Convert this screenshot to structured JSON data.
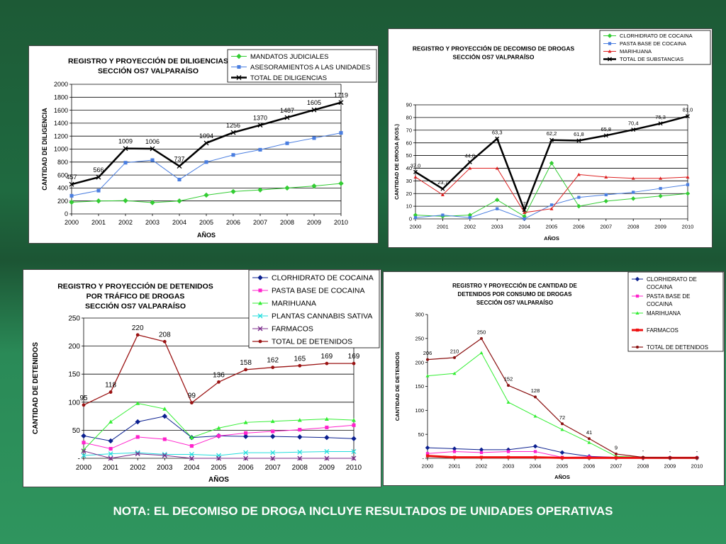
{
  "note": "NOTA: EL DECOMISO DE DROGA INCLUYE RESULTADOS DE UNIDADES OPERATIVAS",
  "chart_data": [
    {
      "id": "diligencias",
      "type": "line",
      "title": [
        "REGISTRO Y PROYECCIÓN DE DILIGENCIAS",
        "SECCIÓN OS7 VALPARAÍSO"
      ],
      "xlabel": "AÑOS",
      "ylabel": "CANTIDAD DE DILIGENCIA",
      "ylim": [
        0,
        2000
      ],
      "yticks": [
        "0",
        "200",
        "400",
        "600",
        "800",
        "1000",
        "1200",
        "1400",
        "1600",
        "1800",
        "2000"
      ],
      "grid": true,
      "legend": "top-right",
      "categories": [
        "2000",
        "2001",
        "2002",
        "2003",
        "2004",
        "2005",
        "2006",
        "2007",
        "2008",
        "2009",
        "2010"
      ],
      "series": [
        {
          "name": "MANDATOS JUDICIALES",
          "color": "#33cc33",
          "marker": "diamond",
          "width": 1,
          "values": [
            180,
            200,
            205,
            175,
            200,
            290,
            345,
            370,
            400,
            430,
            470
          ],
          "labels": []
        },
        {
          "name": "ASESORAMIENTOS A LAS UNIDADES",
          "color": "#4a7ee0",
          "marker": "square",
          "width": 1,
          "values": [
            280,
            360,
            790,
            830,
            530,
            800,
            910,
            990,
            1090,
            1170,
            1250
          ],
          "labels": []
        },
        {
          "name": "TOTAL DE DILIGENCIAS",
          "color": "#000000",
          "marker": "x",
          "width": 2.5,
          "values": [
            457,
            566,
            1009,
            1006,
            737,
            1094,
            1256,
            1370,
            1487,
            1605,
            1719
          ],
          "labels": [
            "457",
            "566",
            "1009",
            "1006",
            "737",
            "1094",
            "1256",
            "1370",
            "1487",
            "1605",
            "1719"
          ]
        }
      ]
    },
    {
      "id": "decomiso",
      "type": "line",
      "title": [
        "REGISTRO Y PROYECCIÓN DE DECOMISO DE DROGAS",
        "SECCIÓN OS7 VALPARAÍSO"
      ],
      "xlabel": "AÑOS",
      "ylabel": "CANTIDAD DE DROGA (KGS.)",
      "ylim": [
        0,
        90
      ],
      "yticks": [
        "0",
        "10",
        "20",
        "30",
        "40",
        "50",
        "60",
        "70",
        "80",
        "90"
      ],
      "grid": true,
      "legend": "top-right",
      "categories": [
        "2000",
        "2001",
        "2002",
        "2003",
        "2004",
        "2005",
        "2006",
        "2007",
        "2008",
        "2009",
        "2010"
      ],
      "series": [
        {
          "name": "CLORHIDRATO DE COCAINA",
          "color": "#33cc33",
          "marker": "diamond",
          "width": 1,
          "values": [
            3,
            2,
            3,
            15,
            2,
            44,
            10,
            14,
            16,
            18,
            20
          ],
          "labels": []
        },
        {
          "name": "PASTA BASE DE COCAINA",
          "color": "#4a7ee0",
          "marker": "square",
          "width": 1,
          "values": [
            1,
            3,
            1,
            8,
            0,
            11,
            17,
            19,
            21,
            24,
            27
          ],
          "labels": []
        },
        {
          "name": "MARIHUANA",
          "color": "#dd2222",
          "marker": "triangle",
          "width": 1,
          "values": [
            33,
            19,
            40,
            40,
            5,
            8,
            35,
            33,
            32,
            32,
            33
          ],
          "labels": []
        },
        {
          "name": "TOTAL DE SUBSTANCIAS",
          "color": "#000000",
          "marker": "x",
          "width": 2.5,
          "values": [
            37.0,
            23.7,
            44.8,
            63.3,
            7,
            62.2,
            61.8,
            65.8,
            70.4,
            75.3,
            81.0
          ],
          "labels": [
            "37,0",
            "23,7",
            "44,8",
            "63,3",
            "7",
            "62,2",
            "61,8",
            "65,8",
            "70,4",
            "75,3",
            "81,0"
          ]
        }
      ]
    },
    {
      "id": "detenidos_trafico",
      "type": "line",
      "title": [
        "REGISTRO Y PROYECCIÓN DE DETENIDOS",
        "POR TRÁFICO DE DROGAS",
        "SECCIÓN OS7 VALPARAÍSO"
      ],
      "xlabel": "AÑOS",
      "ylabel": "CANTIDAD DE DETENIDOS",
      "ylim": [
        0,
        250
      ],
      "yticks": [
        "-",
        "50",
        "100",
        "150",
        "200",
        "250"
      ],
      "grid": true,
      "legend": "top-right",
      "categories": [
        "2000",
        "2001",
        "2002",
        "2003",
        "2004",
        "2005",
        "2006",
        "2007",
        "2008",
        "2009",
        "2010"
      ],
      "series": [
        {
          "name": "CLORHIDRATO DE COCAINA",
          "color": "#0a1f8f",
          "marker": "diamond",
          "width": 1,
          "values": [
            40,
            31,
            65,
            75,
            37,
            40,
            39,
            39,
            38,
            37,
            35
          ],
          "labels": []
        },
        {
          "name": "PASTA BASE DE COCAINA",
          "color": "#ff22cc",
          "marker": "square",
          "width": 1,
          "values": [
            28,
            17,
            38,
            34,
            22,
            40,
            45,
            48,
            51,
            55,
            59
          ],
          "labels": []
        },
        {
          "name": "MARIHUANA",
          "color": "#33ee33",
          "marker": "triangle",
          "width": 1,
          "values": [
            15,
            65,
            98,
            88,
            37,
            54,
            64,
            66,
            68,
            70,
            68
          ],
          "labels": []
        },
        {
          "name": "PLANTAS CANNABIS SATIVA",
          "color": "#22dddd",
          "marker": "x",
          "width": 1,
          "values": [
            5,
            8,
            10,
            7,
            7,
            5,
            10,
            10,
            11,
            12,
            12
          ],
          "labels": []
        },
        {
          "name": "FARMACOS",
          "color": "#7a2a8a",
          "marker": "x",
          "width": 1,
          "values": [
            13,
            0,
            8,
            5,
            0,
            0,
            0,
            0,
            0,
            0,
            0
          ],
          "labels": []
        },
        {
          "name": "TOTAL DE DETENIDOS",
          "color": "#9a1212",
          "marker": "circle",
          "width": 1.3,
          "values": [
            95,
            118,
            220,
            208,
            99,
            136,
            158,
            162,
            165,
            169,
            169
          ],
          "labels": [
            "95",
            "118",
            "220",
            "208",
            "99",
            "136",
            "158",
            "162",
            "165",
            "169",
            "169"
          ]
        }
      ]
    },
    {
      "id": "detenidos_consumo",
      "type": "line",
      "title": [
        "REGISTRO Y PROYECCIÓN DE CANTIDAD DE",
        "DETENIDOS POR CONSUMO DE DROGAS",
        "SECCIÓN OS7 VALPARAÍSO"
      ],
      "xlabel": "AÑOS",
      "ylabel": "CANTIDAD DE DETENIDOS",
      "ylim": [
        0,
        300
      ],
      "yticks": [
        "-",
        "50",
        "100",
        "150",
        "200",
        "250",
        "300"
      ],
      "grid": false,
      "legend": "top-right",
      "categories": [
        "2000",
        "2001",
        "2002",
        "2003",
        "2004",
        "2005",
        "2006",
        "2007",
        "2008",
        "2009",
        "2010"
      ],
      "series": [
        {
          "name": "CLORHIDRATO DE COCAINA",
          "color": "#0a1f8f",
          "marker": "diamond",
          "width": 1,
          "values": [
            22,
            20,
            18,
            18,
            25,
            12,
            4,
            2,
            1,
            1,
            1
          ],
          "labels": []
        },
        {
          "name": "PASTA BASE DE COCAINA",
          "color": "#ff22cc",
          "marker": "square",
          "width": 1,
          "values": [
            10,
            14,
            12,
            14,
            14,
            2,
            3,
            2,
            1,
            1,
            1
          ],
          "labels": []
        },
        {
          "name": "MARIHUANA",
          "color": "#33ee33",
          "marker": "triangle",
          "width": 1,
          "values": [
            172,
            177,
            220,
            117,
            88,
            60,
            33,
            4,
            2,
            1,
            1
          ],
          "labels": []
        },
        {
          "name": "FARMACOS",
          "color": "#ee1111",
          "marker": "square",
          "width": 3,
          "values": [
            5,
            2,
            2,
            2,
            2,
            1,
            1,
            1,
            1,
            1,
            1
          ],
          "labels": []
        },
        {
          "name": "TOTAL DE DETENIDOS",
          "color": "#8a1010",
          "marker": "circle",
          "width": 1.2,
          "values": [
            206,
            210,
            250,
            152,
            128,
            72,
            41,
            9,
            2,
            1,
            1
          ],
          "labels": [
            "206",
            "210",
            "250",
            "152",
            "128",
            "72",
            "41",
            "9",
            "-",
            "-",
            "-"
          ]
        }
      ]
    }
  ]
}
